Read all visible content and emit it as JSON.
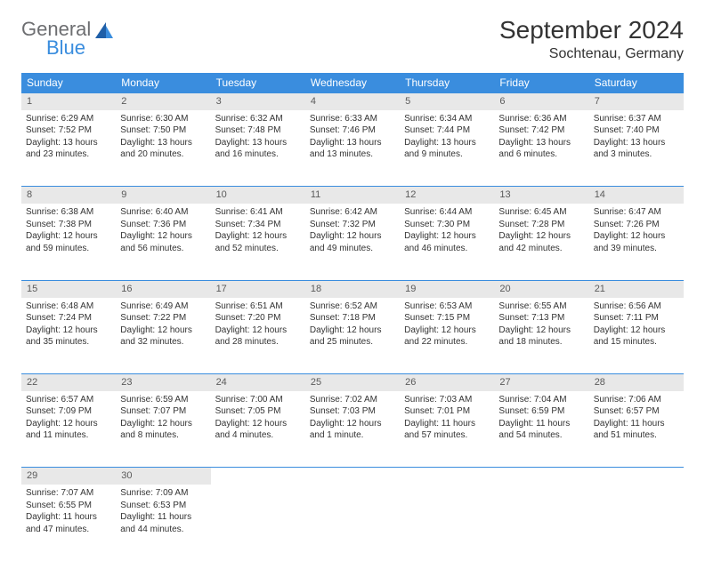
{
  "brand": {
    "general": "General",
    "blue": "Blue"
  },
  "title": "September 2024",
  "location": "Sochtenau, Germany",
  "colors": {
    "header_bg": "#3a8dde",
    "header_text": "#ffffff",
    "daynum_bg": "#e8e8e8",
    "daynum_text": "#5a5a5a",
    "row_divider": "#3a8dde",
    "body_text": "#333333",
    "logo_gray": "#6d6e71",
    "logo_blue": "#3a8dde",
    "page_bg": "#ffffff"
  },
  "typography": {
    "title_fontsize": 28,
    "location_fontsize": 16,
    "weekday_fontsize": 12,
    "daynum_fontsize": 11,
    "cell_fontsize": 10
  },
  "weekdays": [
    "Sunday",
    "Monday",
    "Tuesday",
    "Wednesday",
    "Thursday",
    "Friday",
    "Saturday"
  ],
  "weeks": [
    [
      {
        "n": "1",
        "sr": "Sunrise: 6:29 AM",
        "ss": "Sunset: 7:52 PM",
        "d1": "Daylight: 13 hours",
        "d2": "and 23 minutes."
      },
      {
        "n": "2",
        "sr": "Sunrise: 6:30 AM",
        "ss": "Sunset: 7:50 PM",
        "d1": "Daylight: 13 hours",
        "d2": "and 20 minutes."
      },
      {
        "n": "3",
        "sr": "Sunrise: 6:32 AM",
        "ss": "Sunset: 7:48 PM",
        "d1": "Daylight: 13 hours",
        "d2": "and 16 minutes."
      },
      {
        "n": "4",
        "sr": "Sunrise: 6:33 AM",
        "ss": "Sunset: 7:46 PM",
        "d1": "Daylight: 13 hours",
        "d2": "and 13 minutes."
      },
      {
        "n": "5",
        "sr": "Sunrise: 6:34 AM",
        "ss": "Sunset: 7:44 PM",
        "d1": "Daylight: 13 hours",
        "d2": "and 9 minutes."
      },
      {
        "n": "6",
        "sr": "Sunrise: 6:36 AM",
        "ss": "Sunset: 7:42 PM",
        "d1": "Daylight: 13 hours",
        "d2": "and 6 minutes."
      },
      {
        "n": "7",
        "sr": "Sunrise: 6:37 AM",
        "ss": "Sunset: 7:40 PM",
        "d1": "Daylight: 13 hours",
        "d2": "and 3 minutes."
      }
    ],
    [
      {
        "n": "8",
        "sr": "Sunrise: 6:38 AM",
        "ss": "Sunset: 7:38 PM",
        "d1": "Daylight: 12 hours",
        "d2": "and 59 minutes."
      },
      {
        "n": "9",
        "sr": "Sunrise: 6:40 AM",
        "ss": "Sunset: 7:36 PM",
        "d1": "Daylight: 12 hours",
        "d2": "and 56 minutes."
      },
      {
        "n": "10",
        "sr": "Sunrise: 6:41 AM",
        "ss": "Sunset: 7:34 PM",
        "d1": "Daylight: 12 hours",
        "d2": "and 52 minutes."
      },
      {
        "n": "11",
        "sr": "Sunrise: 6:42 AM",
        "ss": "Sunset: 7:32 PM",
        "d1": "Daylight: 12 hours",
        "d2": "and 49 minutes."
      },
      {
        "n": "12",
        "sr": "Sunrise: 6:44 AM",
        "ss": "Sunset: 7:30 PM",
        "d1": "Daylight: 12 hours",
        "d2": "and 46 minutes."
      },
      {
        "n": "13",
        "sr": "Sunrise: 6:45 AM",
        "ss": "Sunset: 7:28 PM",
        "d1": "Daylight: 12 hours",
        "d2": "and 42 minutes."
      },
      {
        "n": "14",
        "sr": "Sunrise: 6:47 AM",
        "ss": "Sunset: 7:26 PM",
        "d1": "Daylight: 12 hours",
        "d2": "and 39 minutes."
      }
    ],
    [
      {
        "n": "15",
        "sr": "Sunrise: 6:48 AM",
        "ss": "Sunset: 7:24 PM",
        "d1": "Daylight: 12 hours",
        "d2": "and 35 minutes."
      },
      {
        "n": "16",
        "sr": "Sunrise: 6:49 AM",
        "ss": "Sunset: 7:22 PM",
        "d1": "Daylight: 12 hours",
        "d2": "and 32 minutes."
      },
      {
        "n": "17",
        "sr": "Sunrise: 6:51 AM",
        "ss": "Sunset: 7:20 PM",
        "d1": "Daylight: 12 hours",
        "d2": "and 28 minutes."
      },
      {
        "n": "18",
        "sr": "Sunrise: 6:52 AM",
        "ss": "Sunset: 7:18 PM",
        "d1": "Daylight: 12 hours",
        "d2": "and 25 minutes."
      },
      {
        "n": "19",
        "sr": "Sunrise: 6:53 AM",
        "ss": "Sunset: 7:15 PM",
        "d1": "Daylight: 12 hours",
        "d2": "and 22 minutes."
      },
      {
        "n": "20",
        "sr": "Sunrise: 6:55 AM",
        "ss": "Sunset: 7:13 PM",
        "d1": "Daylight: 12 hours",
        "d2": "and 18 minutes."
      },
      {
        "n": "21",
        "sr": "Sunrise: 6:56 AM",
        "ss": "Sunset: 7:11 PM",
        "d1": "Daylight: 12 hours",
        "d2": "and 15 minutes."
      }
    ],
    [
      {
        "n": "22",
        "sr": "Sunrise: 6:57 AM",
        "ss": "Sunset: 7:09 PM",
        "d1": "Daylight: 12 hours",
        "d2": "and 11 minutes."
      },
      {
        "n": "23",
        "sr": "Sunrise: 6:59 AM",
        "ss": "Sunset: 7:07 PM",
        "d1": "Daylight: 12 hours",
        "d2": "and 8 minutes."
      },
      {
        "n": "24",
        "sr": "Sunrise: 7:00 AM",
        "ss": "Sunset: 7:05 PM",
        "d1": "Daylight: 12 hours",
        "d2": "and 4 minutes."
      },
      {
        "n": "25",
        "sr": "Sunrise: 7:02 AM",
        "ss": "Sunset: 7:03 PM",
        "d1": "Daylight: 12 hours",
        "d2": "and 1 minute."
      },
      {
        "n": "26",
        "sr": "Sunrise: 7:03 AM",
        "ss": "Sunset: 7:01 PM",
        "d1": "Daylight: 11 hours",
        "d2": "and 57 minutes."
      },
      {
        "n": "27",
        "sr": "Sunrise: 7:04 AM",
        "ss": "Sunset: 6:59 PM",
        "d1": "Daylight: 11 hours",
        "d2": "and 54 minutes."
      },
      {
        "n": "28",
        "sr": "Sunrise: 7:06 AM",
        "ss": "Sunset: 6:57 PM",
        "d1": "Daylight: 11 hours",
        "d2": "and 51 minutes."
      }
    ],
    [
      {
        "n": "29",
        "sr": "Sunrise: 7:07 AM",
        "ss": "Sunset: 6:55 PM",
        "d1": "Daylight: 11 hours",
        "d2": "and 47 minutes."
      },
      {
        "n": "30",
        "sr": "Sunrise: 7:09 AM",
        "ss": "Sunset: 6:53 PM",
        "d1": "Daylight: 11 hours",
        "d2": "and 44 minutes."
      },
      null,
      null,
      null,
      null,
      null
    ]
  ]
}
